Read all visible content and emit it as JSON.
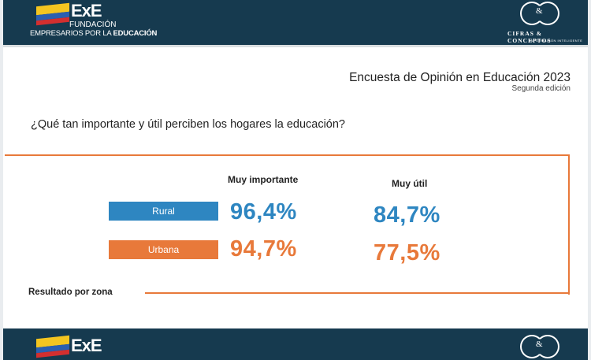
{
  "header": {
    "logo": {
      "brand": "ExE",
      "line1": "FUNDACIÓN",
      "line2_regular": "EMPRESARIOS POR LA ",
      "line2_bold": "EDUCACIÓN"
    },
    "partner": {
      "mark": "&",
      "name": "CIFRAS & CONCEPTOS",
      "tagline": "INFORMACIÓN INTELIGENTE"
    }
  },
  "slide": {
    "title": "Encuesta de Opinión en Educación 2023",
    "subtitle": "Segunda edición",
    "question": "¿Qué tan importante y útil perciben los hogares la educación?"
  },
  "results": {
    "columns": [
      "Muy importante",
      "Muy útil"
    ],
    "rows": [
      {
        "label": "Rural",
        "color": "#2e86c1",
        "values": [
          "96,4%",
          "84,7%"
        ]
      },
      {
        "label": "Urbana",
        "color": "#e8793a",
        "values": [
          "94,7%",
          "77,5%"
        ]
      }
    ],
    "note": "Resultado por zona"
  },
  "footer": {
    "logo": {
      "brand": "ExE"
    },
    "partner": {
      "mark": "&"
    }
  },
  "colors": {
    "brand_navy": "#163a4f",
    "rural_blue": "#2e86c1",
    "urban_orange": "#e8793a"
  }
}
